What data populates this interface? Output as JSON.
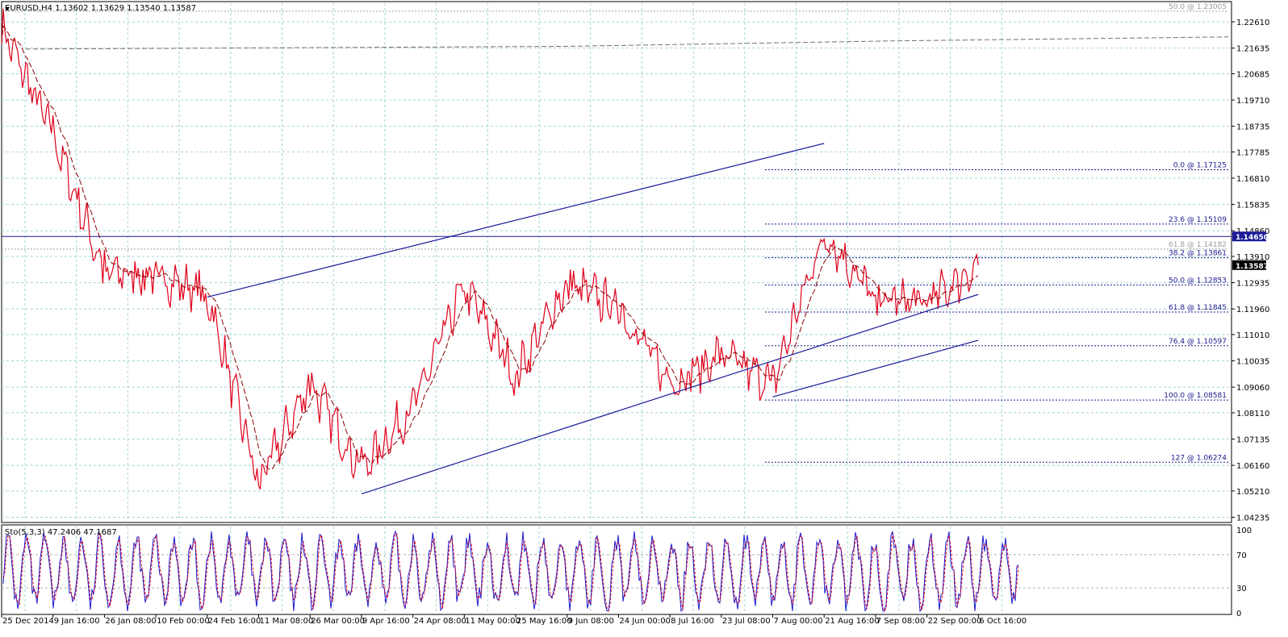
{
  "header": {
    "symbol_line": "EURUSD,H4  1.13602 1.13629 1.13540 1.13587",
    "indicator_line": "Sto(5,3,3) 47.2406 47.1687"
  },
  "colors": {
    "grid": "#9ed4d4",
    "price_line": "#e0001a",
    "bar_blue": "#1a1acc",
    "ma": "#8b0000",
    "trend": "#1a1a99",
    "fib": "#1a1a8c",
    "current_tag": "#000000",
    "level_tag": "#1a1a99"
  },
  "price_axis": {
    "ticks": [
      "1.22610",
      "1.21635",
      "1.20685",
      "1.19710",
      "1.18735",
      "1.17785",
      "1.16810",
      "1.15835",
      "1.14860",
      "1.13910",
      "1.12935",
      "1.11960",
      "1.11010",
      "1.10035",
      "1.09060",
      "1.08110",
      "1.07135",
      "1.06160",
      "1.05210",
      "1.04235"
    ],
    "current_price_tag": "1.13587",
    "horizontal_level_tag": "1.14650"
  },
  "stoch_axis": {
    "ticks": [
      "100",
      "70",
      "30",
      "0"
    ]
  },
  "time_axis": {
    "ticks": [
      "25 Dec 2014",
      "9 Jan 16:00",
      "26 Jan 08:00",
      "10 Feb 00:00",
      "24 Feb 16:00",
      "11 Mar 08:00",
      "26 Mar 00:00",
      "9 Apr 16:00",
      "24 Apr 08:00",
      "11 May 00:00",
      "25 May 16:00",
      "9 Jun 08:00",
      "24 Jun 00:00",
      "8 Jul 16:00",
      "23 Jul 08:00",
      "7 Aug 00:00",
      "21 Aug 16:00",
      "7 Sep 08:00",
      "22 Sep 00:00",
      "6 Oct 16:00"
    ]
  },
  "fibonacci": {
    "levels": [
      {
        "text": "0.0 @ 1.17125",
        "price": 1.17125
      },
      {
        "text": "23.6 @ 1.15109",
        "price": 1.15109
      },
      {
        "text": "38.2 @ 1.13861",
        "price": 1.13861
      },
      {
        "text": "50.0 @ 1.12853",
        "price": 1.12853
      },
      {
        "text": "61.8 @ 1.11845",
        "price": 1.11845
      },
      {
        "text": "76.4 @ 1.10597",
        "price": 1.10597
      },
      {
        "text": "100.0 @ 1.08581",
        "price": 1.08581
      },
      {
        "text": "127 @ 1.06274",
        "price": 1.06274
      }
    ],
    "old_levels": [
      {
        "text": "50.0 @ 1.23005",
        "price": 1.23005
      },
      {
        "text": "61.8 @ 1.14182",
        "price": 1.14182
      }
    ]
  },
  "chart_data": {
    "type": "line",
    "symbol": "EURUSD",
    "timeframe": "H4",
    "price_range": [
      1.041,
      1.233
    ],
    "grid": true,
    "x": [
      "25 Dec 2014",
      "9 Jan 16:00",
      "26 Jan 08:00",
      "10 Feb 00:00",
      "24 Feb 16:00",
      "11 Mar 08:00",
      "26 Mar 00:00",
      "9 Apr 16:00",
      "24 Apr 08:00",
      "11 May 00:00",
      "25 May 16:00",
      "9 Jun 08:00",
      "24 Jun 00:00",
      "8 Jul 16:00",
      "23 Jul 08:00",
      "7 Aug 00:00",
      "21 Aug 16:00",
      "7 Sep 08:00",
      "22 Sep 00:00",
      "6 Oct 16:00"
    ],
    "series": [
      {
        "values": [
          1.224,
          1.184,
          1.133,
          1.132,
          1.125,
          1.055,
          1.092,
          1.06,
          1.083,
          1.128,
          1.095,
          1.129,
          1.12,
          1.092,
          1.102,
          1.092,
          1.148,
          1.123,
          1.122,
          1.1358
        ]
      }
    ],
    "trendlines": [
      {
        "from": [
          "24 Feb 16:00",
          1.124
        ],
        "to": [
          "21 Aug 16:00",
          1.181
        ]
      },
      {
        "from": [
          "9 Apr 16:00",
          1.051
        ],
        "to": [
          "6 Oct 16:00",
          1.125
        ]
      },
      {
        "from": [
          "7 Aug 00:00",
          1.087
        ],
        "to": [
          "6 Oct 16:00",
          1.108
        ]
      }
    ],
    "horizontal_levels": [
      1.1465
    ],
    "stochastic": {
      "k": 47.2406,
      "d": 47.1687,
      "range": [
        0,
        100
      ]
    }
  }
}
